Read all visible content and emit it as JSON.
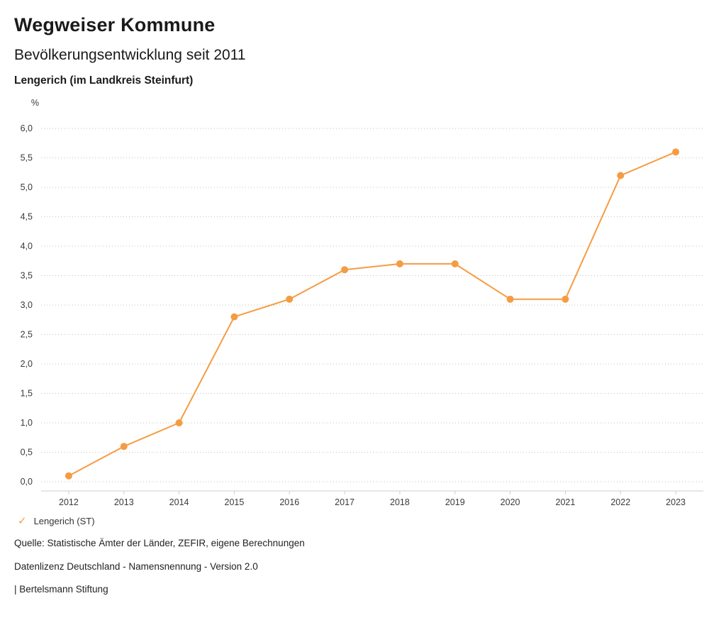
{
  "header": {
    "title": "Wegweiser Kommune",
    "subtitle": "Bevölkerungsentwicklung seit 2011",
    "region": "Lengerich (im Landkreis Steinfurt)"
  },
  "legend": {
    "check_icon": "✓",
    "label": "Lengerich (ST)"
  },
  "footer": {
    "source": "Quelle: Statistische Ämter der Länder, ZEFIR, eigene Berechnungen",
    "license": "Datenlizenz Deutschland - Namensnennung - Version 2.0",
    "attribution": "| Bertelsmann Stiftung"
  },
  "colors": {
    "series_orange": "#F59C42",
    "gridline": "#c2c2c2",
    "axis": "#cfcfcf"
  },
  "chart_data": {
    "type": "line",
    "title": "Bevölkerungsentwicklung seit 2011",
    "subtitle": "Lengerich (im Landkreis Steinfurt)",
    "categories": [
      "2012",
      "2013",
      "2014",
      "2015",
      "2016",
      "2017",
      "2018",
      "2019",
      "2020",
      "2021",
      "2022",
      "2023"
    ],
    "series": [
      {
        "name": "Lengerich (ST)",
        "values": [
          0.1,
          0.6,
          1.0,
          2.8,
          3.1,
          3.6,
          3.7,
          3.7,
          3.1,
          3.1,
          5.2,
          5.6
        ],
        "color": "#F59C42"
      }
    ],
    "xlabel": "",
    "ylabel": "%",
    "ylim": [
      0,
      6
    ],
    "y_ticks": [
      {
        "value": 6.0,
        "label": "6,0"
      },
      {
        "value": 5.5,
        "label": "5,5"
      },
      {
        "value": 5.0,
        "label": "5,0"
      },
      {
        "value": 4.5,
        "label": "4,5"
      },
      {
        "value": 4.0,
        "label": "4,0"
      },
      {
        "value": 3.5,
        "label": "3,5"
      },
      {
        "value": 3.0,
        "label": "3,0"
      },
      {
        "value": 2.5,
        "label": "2,5"
      },
      {
        "value": 2.0,
        "label": "2,0"
      },
      {
        "value": 1.5,
        "label": "1,5"
      },
      {
        "value": 1.0,
        "label": "1,0"
      },
      {
        "value": 0.5,
        "label": "0,5"
      },
      {
        "value": 0.0,
        "label": "0,0"
      }
    ],
    "grid": "horizontal-dotted",
    "legend_position": "bottom-left"
  }
}
